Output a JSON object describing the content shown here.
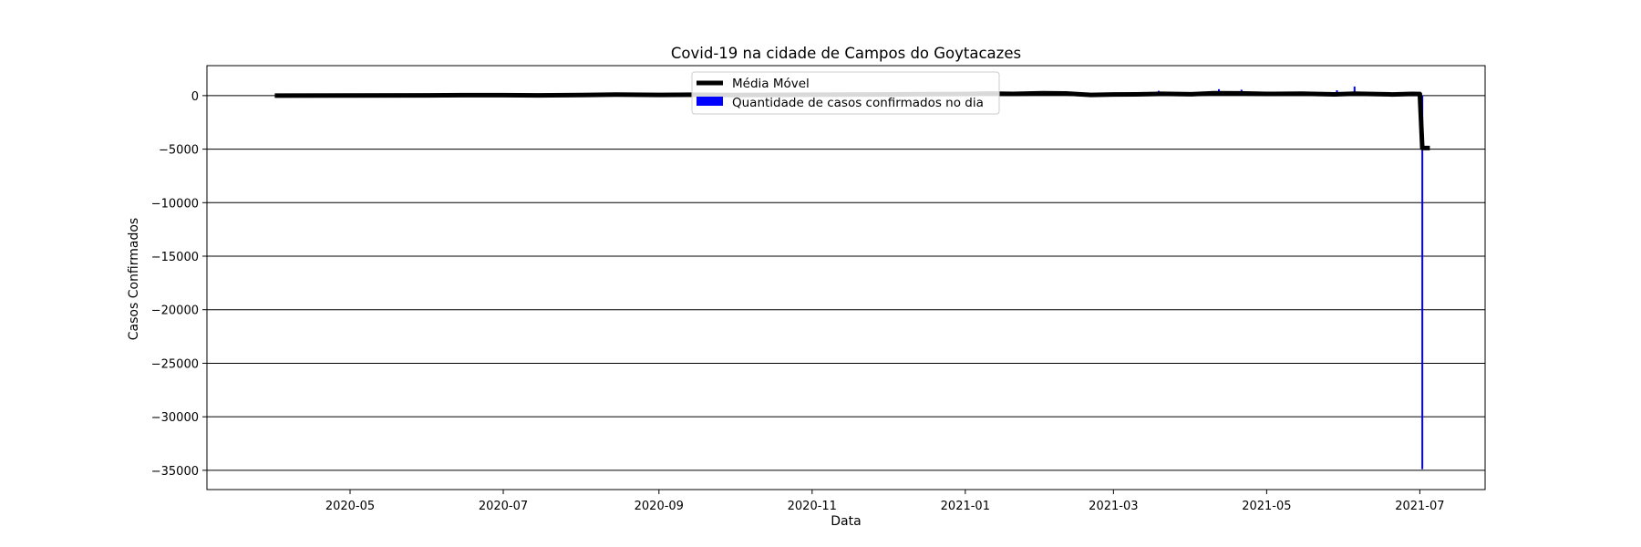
{
  "chart_data": {
    "type": "bar+line",
    "title": "Covid-19 na cidade de Campos do Goytacazes",
    "xlabel": "Data",
    "ylabel": "Casos Confirmados",
    "x_range": [
      "2020-03-05",
      "2021-07-27"
    ],
    "ylim": [
      -36800,
      2800
    ],
    "y_ticks": [
      0,
      -5000,
      -10000,
      -15000,
      -20000,
      -25000,
      -30000,
      -35000
    ],
    "y_tick_labels": [
      "0",
      "−5000",
      "−10000",
      "−15000",
      "−20000",
      "−25000",
      "−30000",
      "−35000"
    ],
    "x_ticks": [
      "2020-05-01",
      "2020-07-01",
      "2020-09-01",
      "2020-11-01",
      "2021-01-01",
      "2021-03-01",
      "2021-05-01",
      "2021-07-01"
    ],
    "x_tick_labels": [
      "2020-05",
      "2020-07",
      "2020-09",
      "2020-11",
      "2021-01",
      "2021-03",
      "2021-05",
      "2021-07"
    ],
    "grid": "horizontal",
    "legend": {
      "placement": "top-center"
    },
    "series": [
      {
        "name": "Média Móvel",
        "kind": "line",
        "color": "#000000",
        "points": [
          [
            "2020-04-01",
            0
          ],
          [
            "2020-05-01",
            10
          ],
          [
            "2020-06-01",
            20
          ],
          [
            "2020-06-15",
            40
          ],
          [
            "2020-07-01",
            45
          ],
          [
            "2020-07-15",
            20
          ],
          [
            "2020-08-01",
            60
          ],
          [
            "2020-08-15",
            90
          ],
          [
            "2020-09-01",
            70
          ],
          [
            "2020-09-15",
            80
          ],
          [
            "2020-10-01",
            60
          ],
          [
            "2020-11-01",
            80
          ],
          [
            "2020-12-01",
            110
          ],
          [
            "2020-12-15",
            140
          ],
          [
            "2021-01-01",
            150
          ],
          [
            "2021-01-10",
            190
          ],
          [
            "2021-01-20",
            160
          ],
          [
            "2021-02-01",
            230
          ],
          [
            "2021-02-10",
            200
          ],
          [
            "2021-02-20",
            70
          ],
          [
            "2021-03-01",
            110
          ],
          [
            "2021-03-10",
            120
          ],
          [
            "2021-03-20",
            170
          ],
          [
            "2021-04-01",
            130
          ],
          [
            "2021-04-10",
            220
          ],
          [
            "2021-04-20",
            210
          ],
          [
            "2021-05-01",
            160
          ],
          [
            "2021-05-15",
            180
          ],
          [
            "2021-05-28",
            120
          ],
          [
            "2021-06-05",
            180
          ],
          [
            "2021-06-12",
            150
          ],
          [
            "2021-06-20",
            110
          ],
          [
            "2021-06-28",
            160
          ],
          [
            "2021-07-01",
            150
          ],
          [
            "2021-07-02",
            -4900
          ],
          [
            "2021-07-05",
            -4900
          ]
        ]
      },
      {
        "name": "Quantidade de casos confirmados no dia",
        "kind": "bar",
        "color": "#0000ff",
        "points": [
          [
            "2020-09-25",
            150
          ],
          [
            "2020-12-10",
            250
          ],
          [
            "2021-03-19",
            450
          ],
          [
            "2021-04-12",
            600
          ],
          [
            "2021-04-21",
            550
          ],
          [
            "2021-05-29",
            500
          ],
          [
            "2021-06-05",
            850
          ],
          [
            "2021-07-02",
            -34900
          ]
        ]
      }
    ]
  }
}
